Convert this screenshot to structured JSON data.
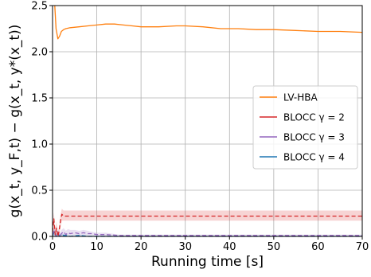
{
  "chart_data": {
    "type": "line",
    "title": "",
    "xlabel": "Running time [s]",
    "ylabel": "g(x_t, y_F,t) − g(x_t, y*(x_t))",
    "xlim": [
      0,
      70
    ],
    "ylim": [
      0,
      2.5
    ],
    "x_ticks": [
      0,
      10,
      20,
      30,
      40,
      50,
      60,
      70
    ],
    "y_ticks": [
      0.0,
      0.5,
      1.0,
      1.5,
      2.0,
      2.5
    ],
    "x_tick_labels": [
      "0",
      "10",
      "20",
      "30",
      "40",
      "50",
      "60",
      "70"
    ],
    "y_tick_labels": [
      "0.0",
      "0.5",
      "1.0",
      "1.5",
      "2.0",
      "2.5"
    ],
    "grid": true,
    "legend_position": "center-right",
    "series": [
      {
        "name": "LV-HBA",
        "color": "#ff7f0e",
        "style": "solid",
        "x": [
          0.5,
          0.8,
          1.2,
          1.6,
          2.0,
          2.5,
          3,
          4,
          6,
          8,
          10,
          12,
          14,
          16,
          18,
          20,
          24,
          28,
          30,
          34,
          38,
          42,
          46,
          50,
          55,
          60,
          65,
          70
        ],
        "y": [
          2.55,
          2.25,
          2.14,
          2.17,
          2.22,
          2.24,
          2.25,
          2.26,
          2.27,
          2.28,
          2.29,
          2.3,
          2.3,
          2.29,
          2.28,
          2.27,
          2.27,
          2.28,
          2.28,
          2.27,
          2.25,
          2.25,
          2.24,
          2.24,
          2.23,
          2.22,
          2.22,
          2.21
        ]
      },
      {
        "name": "BLOCC γ = 2",
        "color": "#d62728",
        "style": "dashed",
        "x": [
          0,
          0.3,
          0.6,
          0.9,
          1.2,
          1.5,
          1.8,
          2.1,
          2.5,
          3,
          5,
          10,
          20,
          30,
          40,
          50,
          60,
          70
        ],
        "y": [
          0.05,
          0.19,
          0.02,
          0.09,
          0.0,
          0.06,
          0.17,
          0.24,
          0.22,
          0.22,
          0.22,
          0.22,
          0.22,
          0.22,
          0.22,
          0.22,
          0.22,
          0.22
        ],
        "band_lower": [
          0.0,
          0.1,
          0.0,
          0.02,
          0.0,
          0.0,
          0.1,
          0.17,
          0.17,
          0.17,
          0.17,
          0.17,
          0.17,
          0.17,
          0.17,
          0.17,
          0.17,
          0.17
        ],
        "band_upper": [
          0.1,
          0.26,
          0.08,
          0.16,
          0.04,
          0.12,
          0.24,
          0.3,
          0.28,
          0.28,
          0.28,
          0.28,
          0.28,
          0.28,
          0.28,
          0.28,
          0.28,
          0.28
        ]
      },
      {
        "name": "BLOCC γ = 3",
        "color": "#9467bd",
        "style": "dashed",
        "x": [
          0,
          0.4,
          0.8,
          1.2,
          1.6,
          2,
          2.5,
          3,
          3.5,
          4,
          5,
          6,
          7,
          8,
          9,
          10,
          12,
          15,
          20,
          30,
          40,
          50,
          60,
          70
        ],
        "y": [
          0.02,
          0.06,
          0.0,
          0.04,
          0.0,
          0.03,
          0.05,
          0.02,
          0.04,
          0.03,
          0.04,
          0.03,
          0.04,
          0.03,
          0.03,
          0.02,
          0.02,
          0.01,
          0.01,
          0.01,
          0.01,
          0.01,
          0.01,
          0.01
        ],
        "band_lower": [
          0.0,
          0.01,
          0.0,
          0.0,
          0.0,
          0.0,
          0.01,
          0.0,
          0.01,
          0.01,
          0.01,
          0.01,
          0.01,
          0.01,
          0.01,
          0.0,
          0.0,
          0.0,
          0.0,
          0.0,
          0.0,
          0.0,
          0.0,
          0.0
        ],
        "band_upper": [
          0.05,
          0.1,
          0.03,
          0.08,
          0.03,
          0.07,
          0.09,
          0.06,
          0.08,
          0.07,
          0.07,
          0.06,
          0.07,
          0.06,
          0.05,
          0.04,
          0.04,
          0.02,
          0.02,
          0.02,
          0.02,
          0.02,
          0.02,
          0.02
        ]
      },
      {
        "name": "BLOCC γ = 4",
        "color": "#1f77b4",
        "style": "dashed",
        "x": [
          0,
          0.4,
          0.8,
          1.2,
          1.6,
          2,
          3,
          4,
          6,
          8,
          10,
          15,
          20,
          30,
          40,
          50,
          60,
          70
        ],
        "y": [
          0.01,
          0.05,
          0.0,
          0.03,
          0.0,
          0.01,
          0.01,
          0.0,
          0.01,
          0.0,
          0.0,
          0.0,
          0.0,
          0.0,
          0.0,
          0.0,
          0.0,
          0.0
        ],
        "band_lower": [
          0,
          0,
          0,
          0,
          0,
          0,
          0,
          0,
          0,
          0,
          0,
          0,
          0,
          0,
          0,
          0,
          0,
          0
        ],
        "band_upper": [
          0.03,
          0.08,
          0.02,
          0.06,
          0.02,
          0.03,
          0.02,
          0.01,
          0.02,
          0.01,
          0.01,
          0.01,
          0.01,
          0.01,
          0.01,
          0.01,
          0.01,
          0.01
        ]
      }
    ]
  }
}
